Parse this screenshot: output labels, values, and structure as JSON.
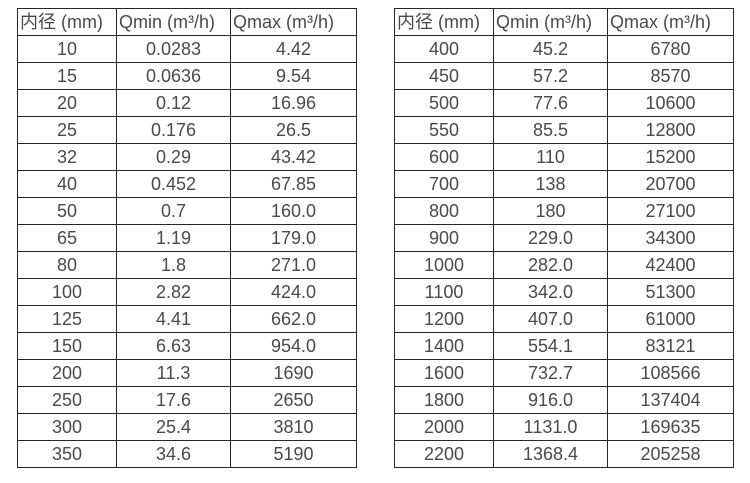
{
  "colors": {
    "background": "#ffffff",
    "table_border": "#262626",
    "table_text": "#4a4a4a"
  },
  "tables": [
    {
      "name": "flow-range-table-small-diameters",
      "headers": [
        "内径 (mm)",
        "Qmin (m³/h)",
        "Qmax (m³/h)"
      ],
      "rows": [
        [
          "10",
          "0.0283",
          "4.42"
        ],
        [
          "15",
          "0.0636",
          "9.54"
        ],
        [
          "20",
          "0.12",
          "16.96"
        ],
        [
          "25",
          "0.176",
          "26.5"
        ],
        [
          "32",
          "0.29",
          "43.42"
        ],
        [
          "40",
          "0.452",
          "67.85"
        ],
        [
          "50",
          "0.7",
          "160.0"
        ],
        [
          "65",
          "1.19",
          "179.0"
        ],
        [
          "80",
          "1.8",
          "271.0"
        ],
        [
          "100",
          "2.82",
          "424.0"
        ],
        [
          "125",
          "4.41",
          "662.0"
        ],
        [
          "150",
          "6.63",
          "954.0"
        ],
        [
          "200",
          "11.3",
          "1690"
        ],
        [
          "250",
          "17.6",
          "2650"
        ],
        [
          "300",
          "25.4",
          "3810"
        ],
        [
          "350",
          "34.6",
          "5190"
        ]
      ]
    },
    {
      "name": "flow-range-table-large-diameters",
      "headers": [
        "内径 (mm)",
        "Qmin (m³/h)",
        "Qmax (m³/h)"
      ],
      "rows": [
        [
          "400",
          "45.2",
          "6780"
        ],
        [
          "450",
          "57.2",
          "8570"
        ],
        [
          "500",
          "77.6",
          "10600"
        ],
        [
          "550",
          "85.5",
          "12800"
        ],
        [
          "600",
          "110",
          "15200"
        ],
        [
          "700",
          "138",
          "20700"
        ],
        [
          "800",
          "180",
          "27100"
        ],
        [
          "900",
          "229.0",
          "34300"
        ],
        [
          "1000",
          "282.0",
          "42400"
        ],
        [
          "1100",
          "342.0",
          "51300"
        ],
        [
          "1200",
          "407.0",
          "61000"
        ],
        [
          "1400",
          "554.1",
          "83121"
        ],
        [
          "1600",
          "732.7",
          "108566"
        ],
        [
          "1800",
          "916.0",
          "137404"
        ],
        [
          "2000",
          "1131.0",
          "169635"
        ],
        [
          "2200",
          "1368.4",
          "205258"
        ]
      ]
    }
  ]
}
